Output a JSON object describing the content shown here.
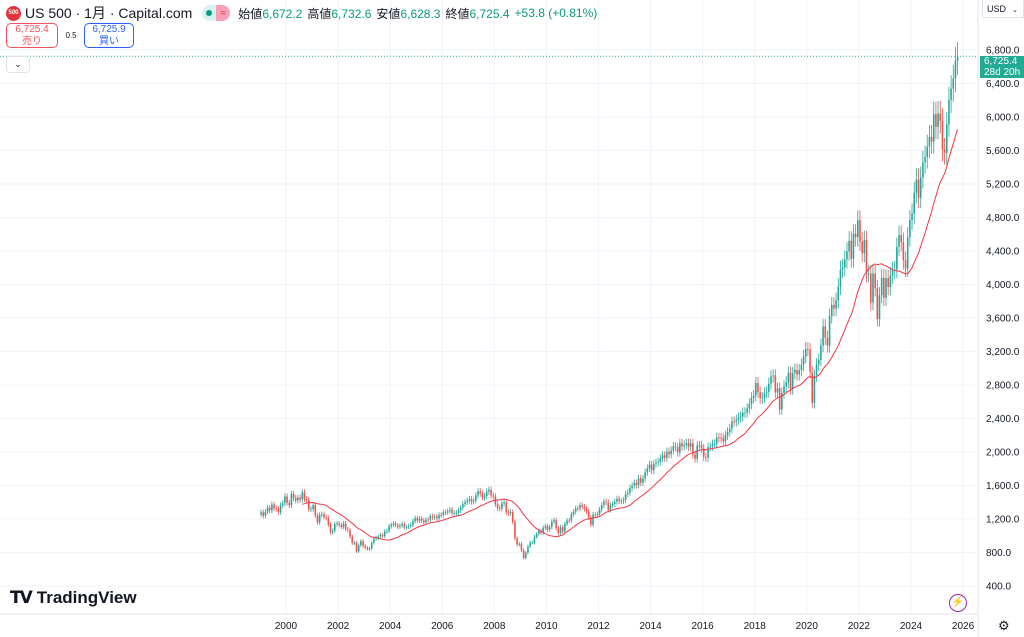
{
  "header": {
    "logo_text": "500",
    "title": "US 500 · 1月 · Capital.com",
    "open_label": "始値",
    "open": "6,672.2",
    "high_label": "高値",
    "high": "6,732.6",
    "low_label": "安値",
    "low": "6,628.3",
    "close_label": "終値",
    "close": "6,725.4",
    "change": "+53.8 (+0.81%)"
  },
  "trade": {
    "sell_price": "6,725.4",
    "sell_label": "売り",
    "spread": "0.5",
    "buy_price": "6,725.9",
    "buy_label": "買い"
  },
  "collapse_icon": "chevron-down-icon",
  "currency": "USD",
  "price_label": {
    "price": "6,725.4",
    "countdown": "28d 20h"
  },
  "branding": "TradingView",
  "colors": {
    "up": "#26a69a",
    "down": "#ef5350",
    "ma": "#f23645",
    "price_label": "#22ab94"
  },
  "chart_data": {
    "type": "candlestick",
    "interval": "1 month",
    "start": "1999-01",
    "closes": [
      1280,
      1238,
      1286,
      1335,
      1302,
      1373,
      1329,
      1320,
      1283,
      1363,
      1389,
      1469,
      1394,
      1366,
      1499,
      1452,
      1421,
      1455,
      1431,
      1518,
      1437,
      1429,
      1315,
      1320,
      1366,
      1240,
      1160,
      1249,
      1256,
      1224,
      1211,
      1134,
      1041,
      1060,
      1139,
      1148,
      1130,
      1107,
      1147,
      1077,
      1067,
      990,
      912,
      916,
      815,
      886,
      936,
      880,
      856,
      841,
      848,
      917,
      964,
      975,
      990,
      1008,
      996,
      1051,
      1058,
      1112,
      1131,
      1145,
      1126,
      1107,
      1121,
      1141,
      1102,
      1104,
      1115,
      1130,
      1174,
      1212,
      1181,
      1204,
      1181,
      1157,
      1192,
      1191,
      1234,
      1220,
      1229,
      1207,
      1249,
      1248,
      1280,
      1281,
      1295,
      1311,
      1270,
      1270,
      1277,
      1304,
      1336,
      1378,
      1401,
      1418,
      1438,
      1407,
      1421,
      1482,
      1531,
      1503,
      1455,
      1474,
      1527,
      1549,
      1481,
      1468,
      1379,
      1331,
      1323,
      1386,
      1400,
      1280,
      1267,
      1283,
      1166,
      969,
      896,
      903,
      826,
      735,
      798,
      873,
      919,
      919,
      987,
      1021,
      1057,
      1036,
      1096,
      1115,
      1074,
      1104,
      1169,
      1187,
      1089,
      1031,
      1102,
      1049,
      1141,
      1183,
      1181,
      1258,
      1286,
      1327,
      1326,
      1364,
      1345,
      1321,
      1292,
      1219,
      1131,
      1253,
      1247,
      1258,
      1312,
      1366,
      1408,
      1398,
      1310,
      1362,
      1379,
      1407,
      1441,
      1412,
      1416,
      1426,
      1498,
      1515,
      1569,
      1598,
      1631,
      1606,
      1686,
      1633,
      1682,
      1757,
      1806,
      1848,
      1783,
      1859,
      1872,
      1884,
      1924,
      1960,
      1931,
      2003,
      1972,
      2018,
      2068,
      2059,
      1995,
      2105,
      2068,
      2086,
      2107,
      2063,
      2104,
      1972,
      1920,
      2079,
      2080,
      2044,
      1940,
      1932,
      2060,
      2065,
      2097,
      2099,
      2174,
      2171,
      2168,
      2126,
      2199,
      2239,
      2279,
      2364,
      2363,
      2384,
      2412,
      2423,
      2470,
      2472,
      2519,
      2575,
      2648,
      2674,
      2824,
      2714,
      2641,
      2648,
      2705,
      2718,
      2816,
      2902,
      2914,
      2712,
      2760,
      2507,
      2704,
      2784,
      2834,
      2946,
      2752,
      2942,
      2980,
      2926,
      2977,
      3038,
      3141,
      3231,
      3226,
      2954,
      2585,
      2912,
      3044,
      3100,
      3271,
      3500,
      3363,
      3270,
      3622,
      3756,
      3714,
      3811,
      3973,
      4181,
      4204,
      4298,
      4395,
      4523,
      4308,
      4605,
      4567,
      4766,
      4516,
      4374,
      4530,
      4132,
      4132,
      3785,
      4130,
      3955,
      3586,
      3872,
      4080,
      3840,
      4077,
      3970,
      4109,
      4169,
      4180,
      4450,
      4589,
      4508,
      4288,
      4194,
      4568,
      4770,
      4846,
      5096,
      5254,
      5036,
      5278,
      5460,
      5522,
      5648,
      5762,
      5705,
      6032,
      5882,
      6041,
      5955,
      5612,
      5569,
      5912,
      6205,
      6339,
      6460,
      6672,
      6725.4
    ],
    "last_price": 6725.4,
    "moving_average": true,
    "y_ticks": [
      "400.0",
      "800.0",
      "1,200.0",
      "1,600.0",
      "2,000.0",
      "2,400.0",
      "2,800.0",
      "3,200.0",
      "3,600.0",
      "4,000.0",
      "4,400.0",
      "4,800.0",
      "5,200.0",
      "5,600.0",
      "6,000.0",
      "6,400.0",
      "6,800.0"
    ],
    "y_tick_values": [
      400,
      800,
      1200,
      1600,
      2000,
      2400,
      2800,
      3200,
      3600,
      4000,
      4400,
      4800,
      5200,
      5600,
      6000,
      6400,
      6800
    ],
    "x_ticks": [
      "2000",
      "2002",
      "2004",
      "2006",
      "2008",
      "2010",
      "2012",
      "2014",
      "2016",
      "2018",
      "2020",
      "2022",
      "2024",
      "2026"
    ],
    "ylim": [
      400,
      6800
    ],
    "grid": true
  }
}
